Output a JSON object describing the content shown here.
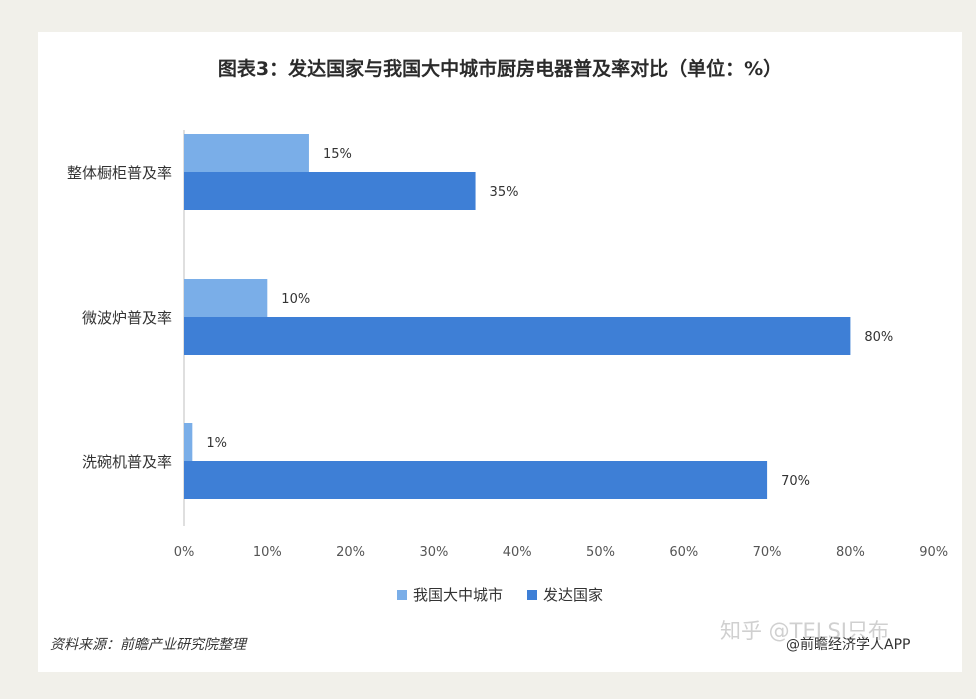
{
  "chart_data": {
    "type": "bar",
    "orientation": "horizontal",
    "title": "图表3：发达国家与我国大中城市厨房电器普及率对比（单位：%）",
    "categories": [
      "整体橱柜普及率",
      "微波炉普及率",
      "洗碗机普及率"
    ],
    "series": [
      {
        "name": "我国大中城市",
        "values": [
          15,
          10,
          1
        ],
        "color": "#7aaee8"
      },
      {
        "name": "发达国家",
        "values": [
          35,
          80,
          70
        ],
        "color": "#3e7fd6"
      }
    ],
    "data_labels": [
      [
        "15%",
        "10%",
        "1%"
      ],
      [
        "35%",
        "80%",
        "70%"
      ]
    ],
    "xlim": [
      0,
      90
    ],
    "x_ticks": [
      "0%",
      "10%",
      "20%",
      "30%",
      "40%",
      "50%",
      "60%",
      "70%",
      "80%",
      "90%"
    ],
    "grid": false,
    "legend_position": "bottom"
  },
  "footer": {
    "source": "资料来源：前瞻产业研究院整理",
    "watermark_zhihu": "知乎 @TELSI只布",
    "credit": "@前瞻经济学人APP"
  }
}
